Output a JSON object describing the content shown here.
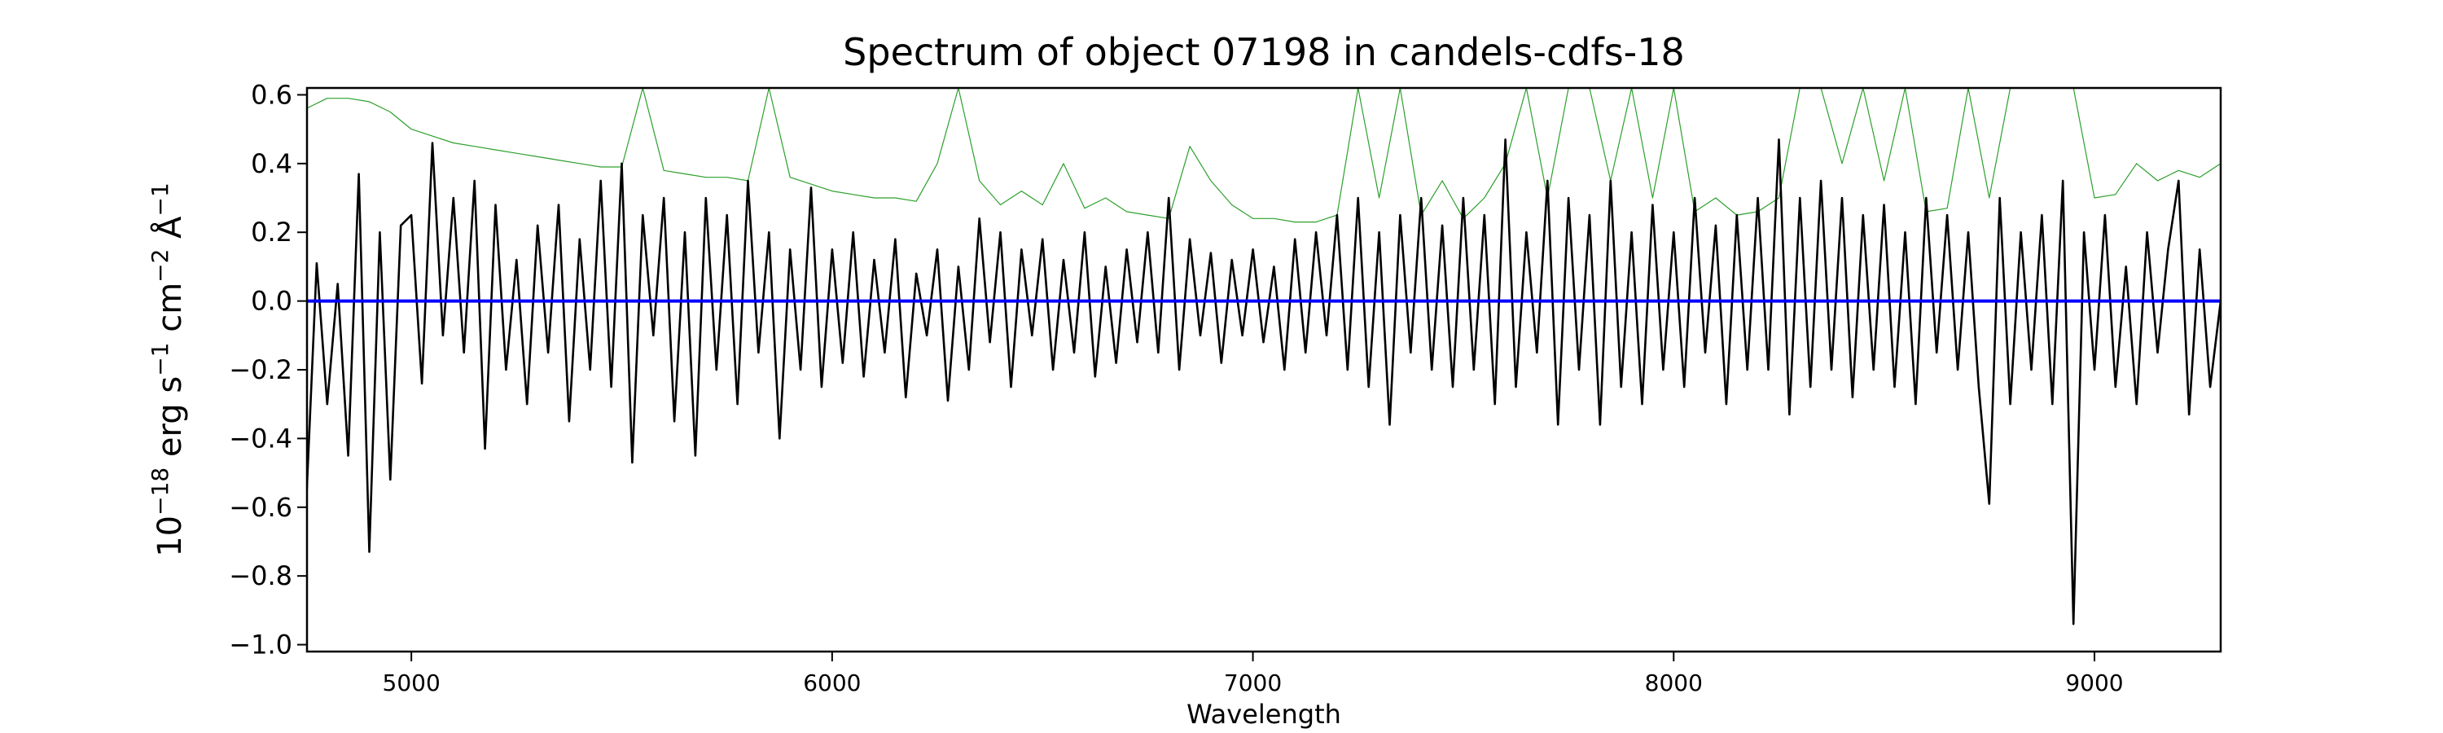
{
  "chart_data": {
    "type": "line",
    "title": "Spectrum of object 07198 in candels-cdfs-18",
    "xlabel": "Wavelength",
    "ylabel": {
      "base": "10",
      "exp_base": "−18",
      "erg": " erg s",
      "exp_s": "−1",
      "cm": " cm",
      "exp_cm": "−2",
      "ang": " Å",
      "exp_ang": "−1"
    },
    "xlim": [
      4752,
      9300
    ],
    "ylim": [
      -1.02,
      0.62
    ],
    "xticks": [
      5000,
      6000,
      7000,
      8000,
      9000
    ],
    "yticks": [
      0.6,
      0.4,
      0.2,
      0.0,
      -0.2,
      -0.4,
      -0.6,
      -0.8,
      -1.0
    ],
    "ytick_labels": [
      "0.6",
      "0.4",
      "0.2",
      "0.0",
      "−0.2",
      "−0.4",
      "−0.6",
      "−0.8",
      "−1.0"
    ],
    "grid": false,
    "series": [
      {
        "color": "#000000",
        "x_start": 4750,
        "x_step": 25,
        "y": [
          -0.59,
          0.11,
          -0.3,
          0.05,
          -0.45,
          0.37,
          -0.73,
          0.2,
          -0.52,
          0.22,
          0.25,
          -0.24,
          0.46,
          -0.1,
          0.3,
          -0.15,
          0.35,
          -0.43,
          0.28,
          -0.2,
          0.12,
          -0.3,
          0.22,
          -0.15,
          0.28,
          -0.35,
          0.18,
          -0.2,
          0.35,
          -0.25,
          0.4,
          -0.47,
          0.25,
          -0.1,
          0.3,
          -0.35,
          0.2,
          -0.45,
          0.3,
          -0.2,
          0.25,
          -0.3,
          0.35,
          -0.15,
          0.2,
          -0.4,
          0.15,
          -0.2,
          0.33,
          -0.25,
          0.15,
          -0.18,
          0.2,
          -0.22,
          0.12,
          -0.15,
          0.18,
          -0.28,
          0.08,
          -0.1,
          0.15,
          -0.29,
          0.1,
          -0.2,
          0.24,
          -0.12,
          0.2,
          -0.25,
          0.15,
          -0.1,
          0.18,
          -0.2,
          0.12,
          -0.15,
          0.2,
          -0.22,
          0.1,
          -0.18,
          0.15,
          -0.12,
          0.2,
          -0.15,
          0.3,
          -0.2,
          0.18,
          -0.1,
          0.14,
          -0.18,
          0.12,
          -0.1,
          0.15,
          -0.12,
          0.1,
          -0.2,
          0.18,
          -0.15,
          0.2,
          -0.1,
          0.25,
          -0.2,
          0.3,
          -0.25,
          0.2,
          -0.36,
          0.25,
          -0.15,
          0.3,
          -0.2,
          0.22,
          -0.25,
          0.3,
          -0.2,
          0.25,
          -0.3,
          0.47,
          -0.25,
          0.2,
          -0.15,
          0.35,
          -0.36,
          0.3,
          -0.2,
          0.25,
          -0.36,
          0.35,
          -0.25,
          0.2,
          -0.3,
          0.28,
          -0.2,
          0.2,
          -0.25,
          0.3,
          -0.15,
          0.22,
          -0.3,
          0.25,
          -0.2,
          0.3,
          -0.2,
          0.47,
          -0.33,
          0.3,
          -0.25,
          0.35,
          -0.2,
          0.3,
          -0.28,
          0.25,
          -0.2,
          0.28,
          -0.25,
          0.2,
          -0.3,
          0.3,
          -0.15,
          0.25,
          -0.2,
          0.2,
          -0.25,
          -0.59,
          0.3,
          -0.3,
          0.2,
          -0.2,
          0.25,
          -0.3,
          0.35,
          -0.94,
          0.2,
          -0.2,
          0.25,
          -0.25,
          0.1,
          -0.3,
          0.2,
          -0.15,
          0.15,
          0.35,
          -0.33,
          0.15,
          -0.25,
          0.0
        ]
      },
      {
        "color": "#2ca02c",
        "x_start": 4750,
        "x_step": 50,
        "y": [
          0.56,
          0.59,
          0.59,
          0.58,
          0.55,
          0.5,
          0.48,
          0.46,
          0.45,
          0.44,
          0.43,
          0.42,
          0.41,
          0.4,
          0.39,
          0.39,
          0.62,
          0.38,
          0.37,
          0.36,
          0.36,
          0.35,
          0.62,
          0.36,
          0.34,
          0.32,
          0.31,
          0.3,
          0.3,
          0.29,
          0.4,
          0.62,
          0.35,
          0.28,
          0.32,
          0.28,
          0.4,
          0.27,
          0.3,
          0.26,
          0.25,
          0.24,
          0.45,
          0.35,
          0.28,
          0.24,
          0.24,
          0.23,
          0.23,
          0.25,
          0.62,
          0.3,
          0.62,
          0.25,
          0.35,
          0.24,
          0.3,
          0.4,
          0.62,
          0.3,
          0.62,
          0.62,
          0.35,
          0.62,
          0.3,
          0.62,
          0.26,
          0.3,
          0.25,
          0.26,
          0.3,
          0.62,
          0.62,
          0.4,
          0.62,
          0.35,
          0.62,
          0.26,
          0.27,
          0.62,
          0.3,
          0.62,
          0.62,
          0.62,
          0.62,
          0.3,
          0.31,
          0.4,
          0.35,
          0.38,
          0.36,
          0.4
        ]
      },
      {
        "color": "#0000ff",
        "x": [
          4752,
          9300
        ],
        "y": [
          0.0,
          0.0
        ]
      }
    ]
  }
}
